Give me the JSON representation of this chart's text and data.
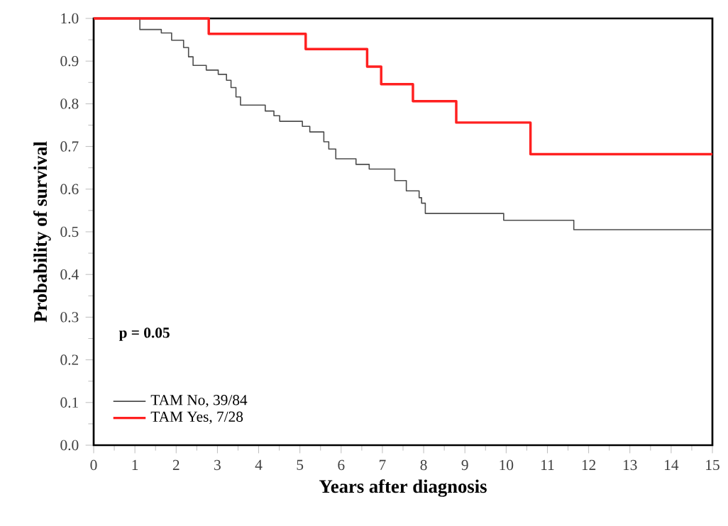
{
  "chart_data": {
    "type": "step",
    "xlabel": "Years after diagnosis",
    "ylabel": "Probability of survival",
    "annotations": [
      "p  = 0.05"
    ],
    "series": [
      {
        "name": "TAM No, 39/84",
        "color": "#4d4d4d",
        "x": [
          0,
          1.12,
          1.64,
          1.89,
          2.18,
          2.3,
          2.41,
          2.73,
          3.02,
          3.22,
          3.33,
          3.45,
          3.56,
          4.16,
          4.37,
          4.51,
          5.06,
          5.24,
          5.58,
          5.7,
          5.87,
          6.36,
          6.68,
          7.3,
          7.58,
          7.89,
          7.95,
          8.04,
          9.94,
          11.64,
          15
        ],
        "values": [
          1.0,
          0.974,
          0.966,
          0.949,
          0.932,
          0.91,
          0.89,
          0.879,
          0.869,
          0.855,
          0.838,
          0.816,
          0.797,
          0.783,
          0.772,
          0.759,
          0.747,
          0.734,
          0.711,
          0.694,
          0.671,
          0.658,
          0.647,
          0.62,
          0.596,
          0.58,
          0.567,
          0.543,
          0.527,
          0.505,
          0.505
        ]
      },
      {
        "name": "TAM Yes, 7/28",
        "color": "#ff2020",
        "x": [
          0,
          2.79,
          5.14,
          6.63,
          6.97,
          7.74,
          8.79,
          10.59,
          15
        ],
        "values": [
          1.0,
          0.964,
          0.928,
          0.887,
          0.846,
          0.806,
          0.756,
          0.682,
          0.682
        ]
      }
    ],
    "xlim": [
      0,
      15
    ],
    "xticks": [
      0,
      1,
      2,
      3,
      4,
      5,
      6,
      7,
      8,
      9,
      10,
      11,
      12,
      13,
      14,
      15
    ],
    "ylim": [
      0,
      1
    ],
    "yticks": [
      {
        "value": 0,
        "label": "0.0"
      },
      {
        "value": 0.1,
        "label": "0.1"
      },
      {
        "value": 0.2,
        "label": "0.2"
      },
      {
        "value": 0.3,
        "label": "0.3"
      },
      {
        "value": 0.4,
        "label": "0.4"
      },
      {
        "value": 0.5,
        "label": "0.5"
      },
      {
        "value": 0.6,
        "label": "0.6"
      },
      {
        "value": 0.7,
        "label": "0.7"
      },
      {
        "value": 0.8,
        "label": "0.8"
      },
      {
        "value": 0.9,
        "label": "0.9"
      },
      {
        "value": 1,
        "label": "1.0"
      }
    ],
    "legend": "bottom left",
    "grid": false
  }
}
